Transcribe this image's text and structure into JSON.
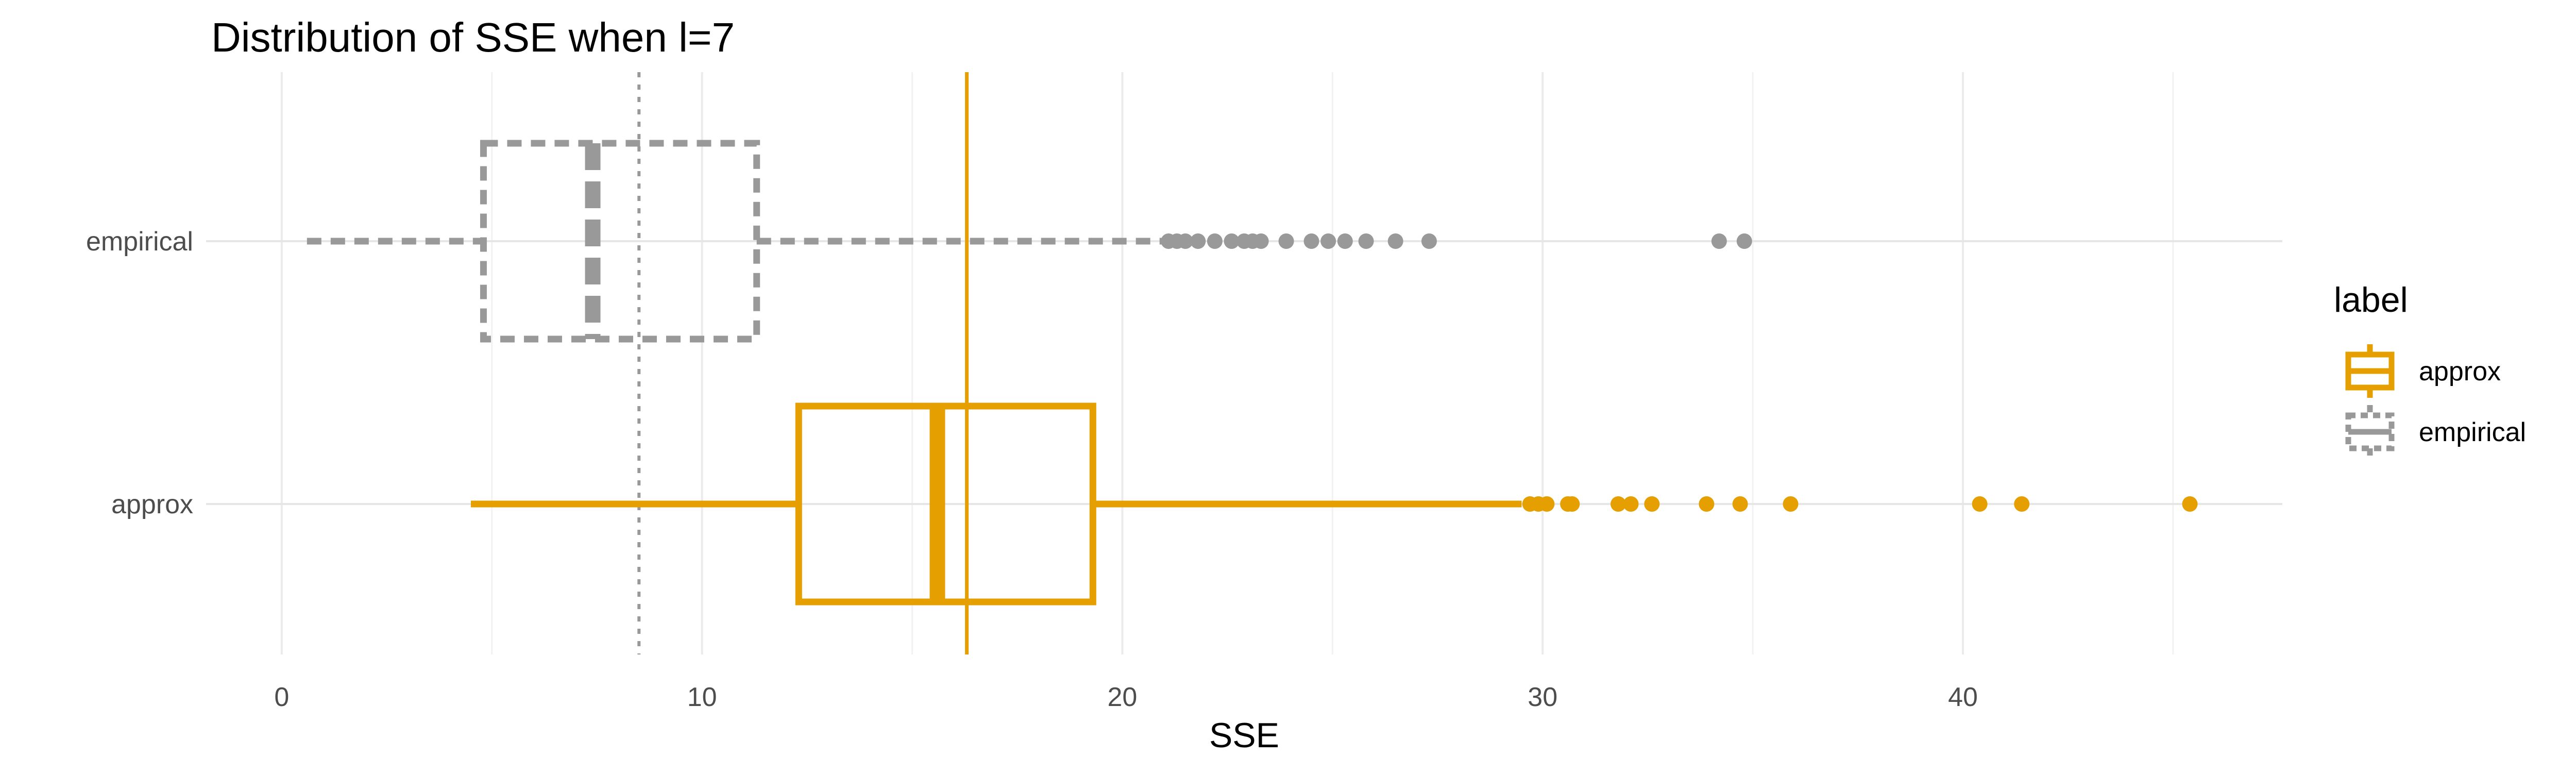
{
  "chart_data": {
    "type": "boxplot",
    "title": "Distribution of SSE when l=7",
    "xlabel": "SSE",
    "ylabel": "",
    "xlim": [
      -1.8,
      47.6
    ],
    "x_ticks": [
      0,
      10,
      20,
      30,
      40
    ],
    "x_tick_labels": [
      "0",
      "10",
      "20",
      "30",
      "40"
    ],
    "grid": true,
    "orientation": "horizontal",
    "legend": {
      "title": "label",
      "position": "right",
      "entries": [
        {
          "label": "approx",
          "color": "#E69F00",
          "linestyle": "solid"
        },
        {
          "label": "empirical",
          "color": "#999999",
          "linestyle": "dashed"
        }
      ]
    },
    "series": [
      {
        "name": "empirical",
        "category": "empirical",
        "color": "#999999",
        "linestyle": "dashed",
        "whisker_low": 0.6,
        "q1": 4.8,
        "median": 7.4,
        "q3": 11.3,
        "whisker_high": 21.0,
        "outliers": [
          21.1,
          21.3,
          21.5,
          21.8,
          22.2,
          22.6,
          22.9,
          23.1,
          23.3,
          23.9,
          24.5,
          24.9,
          25.3,
          25.8,
          26.5,
          27.3,
          34.2,
          34.8
        ]
      },
      {
        "name": "approx",
        "category": "approx",
        "color": "#E69F00",
        "linestyle": "solid",
        "whisker_low": 4.5,
        "q1": 12.3,
        "median": 15.6,
        "q3": 19.3,
        "whisker_high": 29.5,
        "outliers": [
          29.7,
          29.9,
          30.1,
          30.6,
          30.7,
          31.8,
          32.1,
          32.6,
          33.9,
          34.7,
          35.9,
          40.4,
          41.4,
          45.4
        ]
      }
    ],
    "reference_lines": [
      {
        "x": 8.5,
        "color": "#999999",
        "linestyle": "dotted"
      },
      {
        "x": 16.3,
        "color": "#E69F00",
        "linestyle": "solid"
      }
    ]
  }
}
